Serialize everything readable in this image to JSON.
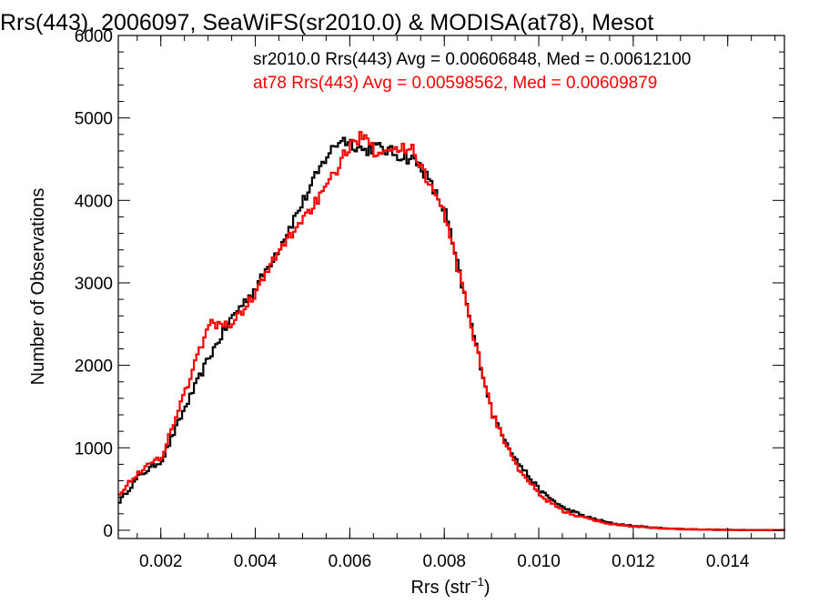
{
  "chart_data": {
    "type": "histogram-step",
    "title": "Rrs(443), 2006097, SeaWiFS(sr2010.0) & MODISA(at78), Mesot",
    "xlabel_main": "Rrs (str",
    "xlabel_sup": "−1",
    "xlabel_close": ")",
    "ylabel": "Number of Observations",
    "xlim": [
      0.0011,
      0.0152
    ],
    "ylim": [
      -100,
      6000
    ],
    "xticks": [
      0.002,
      0.004,
      0.006,
      0.008,
      0.01,
      0.012,
      0.014
    ],
    "xtick_labels": [
      "0.002",
      "0.004",
      "0.006",
      "0.008",
      "0.010",
      "0.012",
      "0.014"
    ],
    "yticks": [
      0,
      1000,
      2000,
      3000,
      4000,
      5000,
      6000
    ],
    "ytick_labels": [
      "0",
      "1000",
      "2000",
      "3000",
      "4000",
      "5000",
      "6000"
    ],
    "x_minor_step": 0.0005,
    "y_minor_step": 200,
    "grid": false,
    "legend_position": "top-right",
    "series": [
      {
        "label": "sr2010.0 Rrs(443) Avg = 0.00606848, Med = 0.00612100",
        "color": "#000000",
        "x": [
          0.0011,
          0.0015,
          0.002,
          0.0025,
          0.003,
          0.0035,
          0.004,
          0.0045,
          0.005,
          0.0055,
          0.0058,
          0.006,
          0.0063,
          0.0065,
          0.0068,
          0.007,
          0.0073,
          0.0075,
          0.008,
          0.0085,
          0.009,
          0.0095,
          0.01,
          0.0105,
          0.011,
          0.0115,
          0.012,
          0.0125,
          0.013,
          0.0135,
          0.014,
          0.0145,
          0.015
        ],
        "y": [
          350,
          650,
          850,
          1500,
          2100,
          2600,
          2950,
          3450,
          4000,
          4550,
          4750,
          4700,
          4600,
          4650,
          4600,
          4550,
          4500,
          4400,
          3850,
          2600,
          1400,
          850,
          480,
          270,
          160,
          85,
          50,
          28,
          15,
          8,
          5,
          3,
          2
        ]
      },
      {
        "label": "at78 Rrs(443) Avg = 0.00598562, Med = 0.00609879",
        "color": "#ff0000",
        "x": [
          0.0011,
          0.0015,
          0.002,
          0.0025,
          0.003,
          0.0035,
          0.004,
          0.0045,
          0.005,
          0.0055,
          0.0058,
          0.006,
          0.0063,
          0.0065,
          0.0068,
          0.007,
          0.0073,
          0.0075,
          0.008,
          0.0085,
          0.009,
          0.0095,
          0.01,
          0.0105,
          0.011,
          0.0115,
          0.012,
          0.0125,
          0.013,
          0.0135,
          0.014,
          0.0145,
          0.015
        ],
        "y": [
          450,
          700,
          900,
          1700,
          2500,
          2500,
          2900,
          3400,
          3800,
          4150,
          4500,
          4650,
          4850,
          4600,
          4650,
          4600,
          4650,
          4400,
          3800,
          2600,
          1400,
          780,
          420,
          230,
          140,
          75,
          45,
          25,
          14,
          7,
          4,
          3,
          2
        ]
      }
    ]
  }
}
